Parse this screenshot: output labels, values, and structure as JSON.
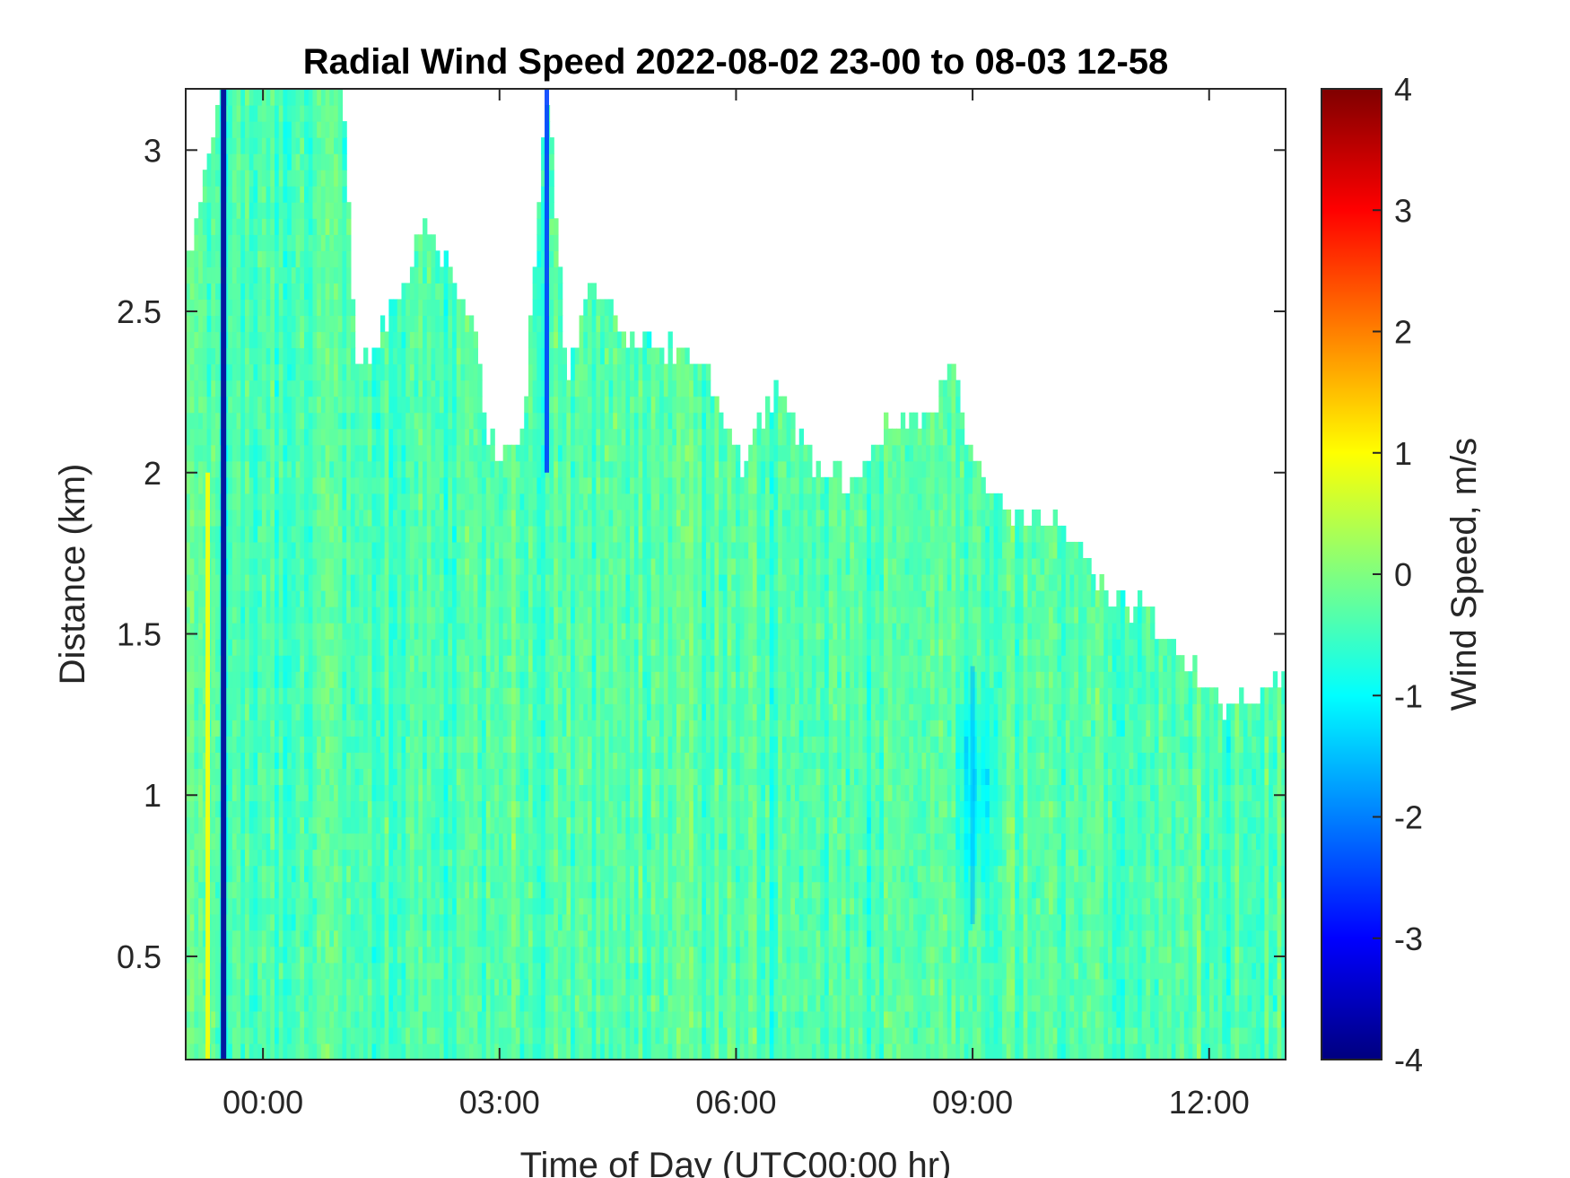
{
  "chart_data": {
    "type": "heatmap",
    "title": "Radial Wind Speed 2022-08-02 23-00 to 08-03 12-58",
    "xlabel": "Time of Day (UTC00:00 hr)",
    "ylabel": "Distance (km)",
    "x_ticks": [
      {
        "value": 0,
        "label": "00:00"
      },
      {
        "value": 3,
        "label": "03:00"
      },
      {
        "value": 6,
        "label": "06:00"
      },
      {
        "value": 9,
        "label": "09:00"
      },
      {
        "value": 12,
        "label": "12:00"
      }
    ],
    "y_ticks": [
      {
        "value": 0.5,
        "label": "0.5"
      },
      {
        "value": 1,
        "label": "1"
      },
      {
        "value": 1.5,
        "label": "1.5"
      },
      {
        "value": 2,
        "label": "2"
      },
      {
        "value": 2.5,
        "label": "2.5"
      },
      {
        "value": 3,
        "label": "3"
      }
    ],
    "xlim": [
      -0.98,
      12.97
    ],
    "ylim": [
      0.18,
      3.19
    ],
    "colorbar": {
      "label": "Wind Speed, m/s",
      "range": [
        -4,
        4
      ],
      "colormap": "jet",
      "ticks": [
        {
          "value": 4,
          "label": "4"
        },
        {
          "value": 3,
          "label": "3"
        },
        {
          "value": 2,
          "label": "2"
        },
        {
          "value": 1,
          "label": "1"
        },
        {
          "value": 0,
          "label": "0"
        },
        {
          "value": -1,
          "label": "-1"
        },
        {
          "value": -2,
          "label": "-2"
        },
        {
          "value": -3,
          "label": "-3"
        },
        {
          "value": -4,
          "label": "-4"
        }
      ]
    },
    "data_top_profile": [
      {
        "t": -0.98,
        "h": 2.6
      },
      {
        "t": -0.5,
        "h": 3.19
      },
      {
        "t": 1.0,
        "h": 3.19
      },
      {
        "t": 1.2,
        "h": 2.3
      },
      {
        "t": 1.8,
        "h": 2.55
      },
      {
        "t": 2.0,
        "h": 2.75
      },
      {
        "t": 2.4,
        "h": 2.6
      },
      {
        "t": 2.7,
        "h": 2.4
      },
      {
        "t": 2.85,
        "h": 2.05
      },
      {
        "t": 3.3,
        "h": 2.1
      },
      {
        "t": 3.6,
        "h": 3.19
      },
      {
        "t": 3.85,
        "h": 2.3
      },
      {
        "t": 4.2,
        "h": 2.55
      },
      {
        "t": 4.6,
        "h": 2.4
      },
      {
        "t": 5.2,
        "h": 2.35
      },
      {
        "t": 5.7,
        "h": 2.25
      },
      {
        "t": 6.1,
        "h": 2.0
      },
      {
        "t": 6.5,
        "h": 2.25
      },
      {
        "t": 7.0,
        "h": 2.0
      },
      {
        "t": 7.5,
        "h": 1.95
      },
      {
        "t": 8.0,
        "h": 2.15
      },
      {
        "t": 8.5,
        "h": 2.15
      },
      {
        "t": 8.75,
        "h": 2.35
      },
      {
        "t": 9.0,
        "h": 2.0
      },
      {
        "t": 9.5,
        "h": 1.85
      },
      {
        "t": 10.2,
        "h": 1.8
      },
      {
        "t": 10.7,
        "h": 1.6
      },
      {
        "t": 11.2,
        "h": 1.55
      },
      {
        "t": 11.6,
        "h": 1.4
      },
      {
        "t": 12.2,
        "h": 1.25
      },
      {
        "t": 12.6,
        "h": 1.3
      },
      {
        "t": 12.97,
        "h": 1.35
      }
    ],
    "features": [
      {
        "t": -0.5,
        "from": 0.18,
        "to": 3.19,
        "value": -3.8
      },
      {
        "t": -0.7,
        "from": 0.18,
        "to": 2.0,
        "value": 1.0
      },
      {
        "t": 3.6,
        "from": 2.0,
        "to": 3.19,
        "value": -2.5
      },
      {
        "t": 9.0,
        "from": 0.6,
        "to": 1.4,
        "value": -1.6
      }
    ]
  }
}
